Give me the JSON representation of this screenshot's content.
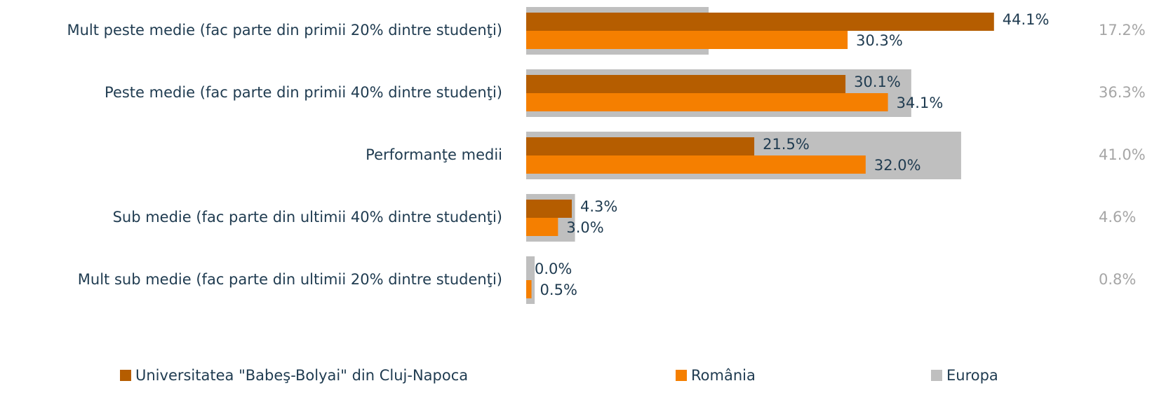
{
  "chart_data": {
    "type": "bar",
    "orientation": "horizontal",
    "categories": [
      "Mult peste medie (fac parte din primii 20% dintre studenţi)",
      "Peste medie (fac parte din primii 40% dintre studenţi)",
      "Performanţe medii",
      "Sub medie (fac parte din ultimii 40% dintre studenţi)",
      "Mult sub medie (fac parte din ultimii 20% dintre studenţi)"
    ],
    "series": [
      {
        "name": "Universitatea \"Babeş-Bolyai\" din Cluj-Napoca",
        "color": "#b55d00",
        "values": [
          44.1,
          30.1,
          21.5,
          4.3,
          0.0
        ],
        "value_labels": [
          "44.1%",
          "30.1%",
          "21.5%",
          "4.3%",
          "0.0%"
        ]
      },
      {
        "name": "România",
        "color": "#f57f00",
        "values": [
          30.3,
          34.1,
          32.0,
          3.0,
          0.5
        ],
        "value_labels": [
          "30.3%",
          "34.1%",
          "32.0%",
          "3.0%",
          "0.5%"
        ]
      },
      {
        "name": "Europa",
        "color": "#bfbfbf",
        "values": [
          17.2,
          36.3,
          41.0,
          4.6,
          0.8
        ],
        "value_labels": [
          "17.2%",
          "36.3%",
          "41.0%",
          "4.6%",
          "0.8%"
        ]
      }
    ],
    "legend": "bottom"
  }
}
